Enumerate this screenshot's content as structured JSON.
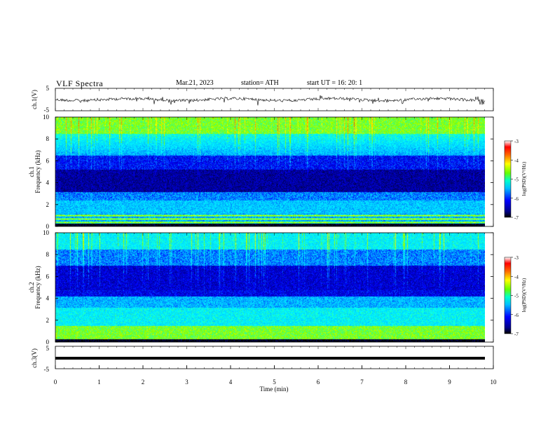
{
  "header": {
    "title": "VLF  Spectra",
    "date": "Mar.21, 2023",
    "station": "station= ATH",
    "start": "start  UT  =    16: 20: 1"
  },
  "chart_data": [
    {
      "type": "line",
      "panel": "ch1-waveform",
      "ylabel": "ch.1(V)",
      "ylim": [
        -5,
        5
      ],
      "yticks": [
        "5",
        "-5"
      ],
      "xlim": [
        0,
        10
      ],
      "description_color": "#000000"
    },
    {
      "type": "heatmap",
      "panel": "ch1-spectrogram",
      "ylabel": "ch.1\nFrequency  (kHz)",
      "ylim": [
        0,
        10
      ],
      "yticks": [
        "0",
        "2",
        "4",
        "6",
        "8",
        "10"
      ],
      "xlim": [
        0,
        10
      ],
      "colorbar": {
        "label": "log(PSD)(V²/Hz)",
        "range": [
          -7,
          -3
        ],
        "ticks": [
          "-3",
          "-4",
          "-5",
          "-6",
          "-7"
        ]
      }
    },
    {
      "type": "heatmap",
      "panel": "ch2-spectrogram",
      "ylabel": "ch.2\nFrequency  (kHz)",
      "ylim": [
        0,
        10
      ],
      "yticks": [
        "0",
        "2",
        "4",
        "6",
        "8",
        "10"
      ],
      "xlim": [
        0,
        10
      ],
      "colorbar": {
        "label": "log(PSD)(V²/Hz)",
        "range": [
          -7,
          -3
        ],
        "ticks": [
          "-3",
          "-4",
          "-5",
          "-6",
          "-7"
        ]
      }
    },
    {
      "type": "line",
      "panel": "ch3-waveform",
      "ylabel": "ch.3(V)",
      "ylim": [
        -5,
        5
      ],
      "yticks": [
        "5",
        "-5"
      ],
      "xlim": [
        0,
        10
      ],
      "xlabel": "Time  (min)",
      "xticks": [
        "0",
        "1",
        "2",
        "3",
        "4",
        "5",
        "6",
        "7",
        "8",
        "9",
        "10"
      ]
    }
  ],
  "colors": {
    "colormap": [
      "#000000",
      "#00008b",
      "#0000ff",
      "#00bfff",
      "#00ffff",
      "#7fff00",
      "#ffff00",
      "#ff8000",
      "#ff0000",
      "#ffffff"
    ]
  }
}
